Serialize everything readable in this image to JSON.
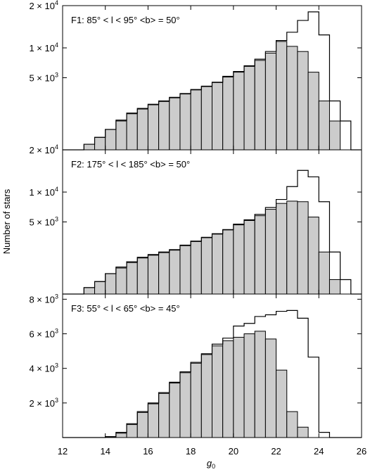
{
  "chart_data": [
    {
      "type": "bar",
      "panel_label": "F1: 85° < l < 95° <b> = 50°",
      "x_bin_edges": [
        12,
        12.5,
        13,
        13.5,
        14,
        14.5,
        15,
        15.5,
        16,
        16.5,
        17,
        17.5,
        18,
        18.5,
        19,
        19.5,
        20,
        20.5,
        21,
        21.5,
        22,
        22.5,
        23,
        23.5,
        24,
        24.5,
        25,
        25.5,
        26
      ],
      "series": [
        {
          "style": "outline",
          "values": [
            0,
            0,
            30,
            150,
            400,
            850,
            1300,
            1650,
            2000,
            2300,
            2650,
            3050,
            3500,
            3900,
            4400,
            5200,
            5900,
            6800,
            7900,
            9300,
            11500,
            13300,
            16100,
            18300,
            12700,
            2300,
            800,
            0
          ]
        },
        {
          "style": "filled",
          "values": [
            0,
            0,
            30,
            150,
            400,
            800,
            1250,
            1600,
            1950,
            2250,
            2600,
            3000,
            3450,
            3850,
            4350,
            5100,
            5800,
            6700,
            7700,
            9000,
            11300,
            10300,
            9300,
            5800,
            2300,
            800,
            0,
            0
          ]
        }
      ],
      "y_ticks": [
        {
          "value": 5000,
          "mantissa": "5",
          "exp": "3"
        },
        {
          "value": 10000,
          "mantissa": "1",
          "exp": "4"
        },
        {
          "value": 20000,
          "mantissa": "2",
          "exp": "4"
        }
      ],
      "ylim": [
        0,
        20000
      ],
      "y_scale": "sqrt"
    },
    {
      "type": "bar",
      "panel_label": "F2: 175° < l < 185° <b> = 50°",
      "x_bin_edges": [
        12,
        12.5,
        13,
        13.5,
        14,
        14.5,
        15,
        15.5,
        16,
        16.5,
        17,
        17.5,
        18,
        18.5,
        19,
        19.5,
        20,
        20.5,
        21,
        21.5,
        22,
        22.5,
        23,
        23.5,
        24,
        24.5,
        25,
        25.5,
        26
      ],
      "series": [
        {
          "style": "outline",
          "values": [
            0,
            0,
            40,
            150,
            400,
            700,
            1000,
            1300,
            1500,
            1700,
            1900,
            2300,
            2700,
            3100,
            3500,
            4000,
            4700,
            5300,
            6100,
            7200,
            8600,
            11100,
            14700,
            13200,
            8200,
            1700,
            200,
            0
          ]
        },
        {
          "style": "filled",
          "values": [
            0,
            0,
            40,
            150,
            400,
            650,
            950,
            1250,
            1450,
            1650,
            1850,
            2250,
            2650,
            3050,
            3450,
            3950,
            4600,
            5200,
            5900,
            6900,
            7900,
            8300,
            8200,
            5700,
            1700,
            200,
            0,
            0
          ]
        }
      ],
      "y_ticks": [
        {
          "value": 5000,
          "mantissa": "5",
          "exp": "3"
        },
        {
          "value": 10000,
          "mantissa": "1",
          "exp": "4"
        },
        {
          "value": 20000,
          "mantissa": "2",
          "exp": "4"
        }
      ],
      "ylim": [
        0,
        20000
      ],
      "y_scale": "sqrt"
    },
    {
      "type": "bar",
      "panel_label": "F3: 55° < l < 65° <b> = 45°",
      "x_bin_edges": [
        12,
        12.5,
        13,
        13.5,
        14,
        14.5,
        15,
        15.5,
        16,
        16.5,
        17,
        17.5,
        18,
        18.5,
        19,
        19.5,
        20,
        20.5,
        21,
        21.5,
        22,
        22.5,
        23,
        23.5,
        24,
        24.5,
        25,
        25.5,
        26
      ],
      "series": [
        {
          "style": "outline",
          "values": [
            0,
            0,
            0,
            0,
            50,
            300,
            800,
            1500,
            2000,
            2600,
            3200,
            3800,
            4350,
            4850,
            5400,
            5750,
            6450,
            6600,
            7000,
            7100,
            7300,
            7350,
            6900,
            4650,
            300,
            0,
            0,
            0
          ]
        },
        {
          "style": "filled",
          "values": [
            0,
            0,
            0,
            0,
            50,
            250,
            750,
            1450,
            1950,
            2550,
            3150,
            3750,
            4300,
            4800,
            5300,
            5600,
            5800,
            6000,
            6150,
            5700,
            3900,
            1500,
            600,
            0,
            0,
            0,
            0,
            0
          ]
        }
      ],
      "y_ticks": [
        {
          "value": 2000,
          "mantissa": "2",
          "exp": "3"
        },
        {
          "value": 4000,
          "mantissa": "4",
          "exp": "3"
        },
        {
          "value": 6000,
          "mantissa": "6",
          "exp": "3"
        },
        {
          "value": 8000,
          "mantissa": "8",
          "exp": "3"
        }
      ],
      "ylim": [
        0,
        8300
      ],
      "y_scale": "linear"
    }
  ],
  "x_ticks": [
    "12",
    "14",
    "16",
    "18",
    "20",
    "22",
    "24",
    "26"
  ],
  "xlim": [
    12,
    26
  ],
  "xlabel": "g",
  "xlabel_sub": "0",
  "ylabel": "Number of stars",
  "colors": {
    "fill": "#cccccc",
    "stroke": "#000000"
  }
}
